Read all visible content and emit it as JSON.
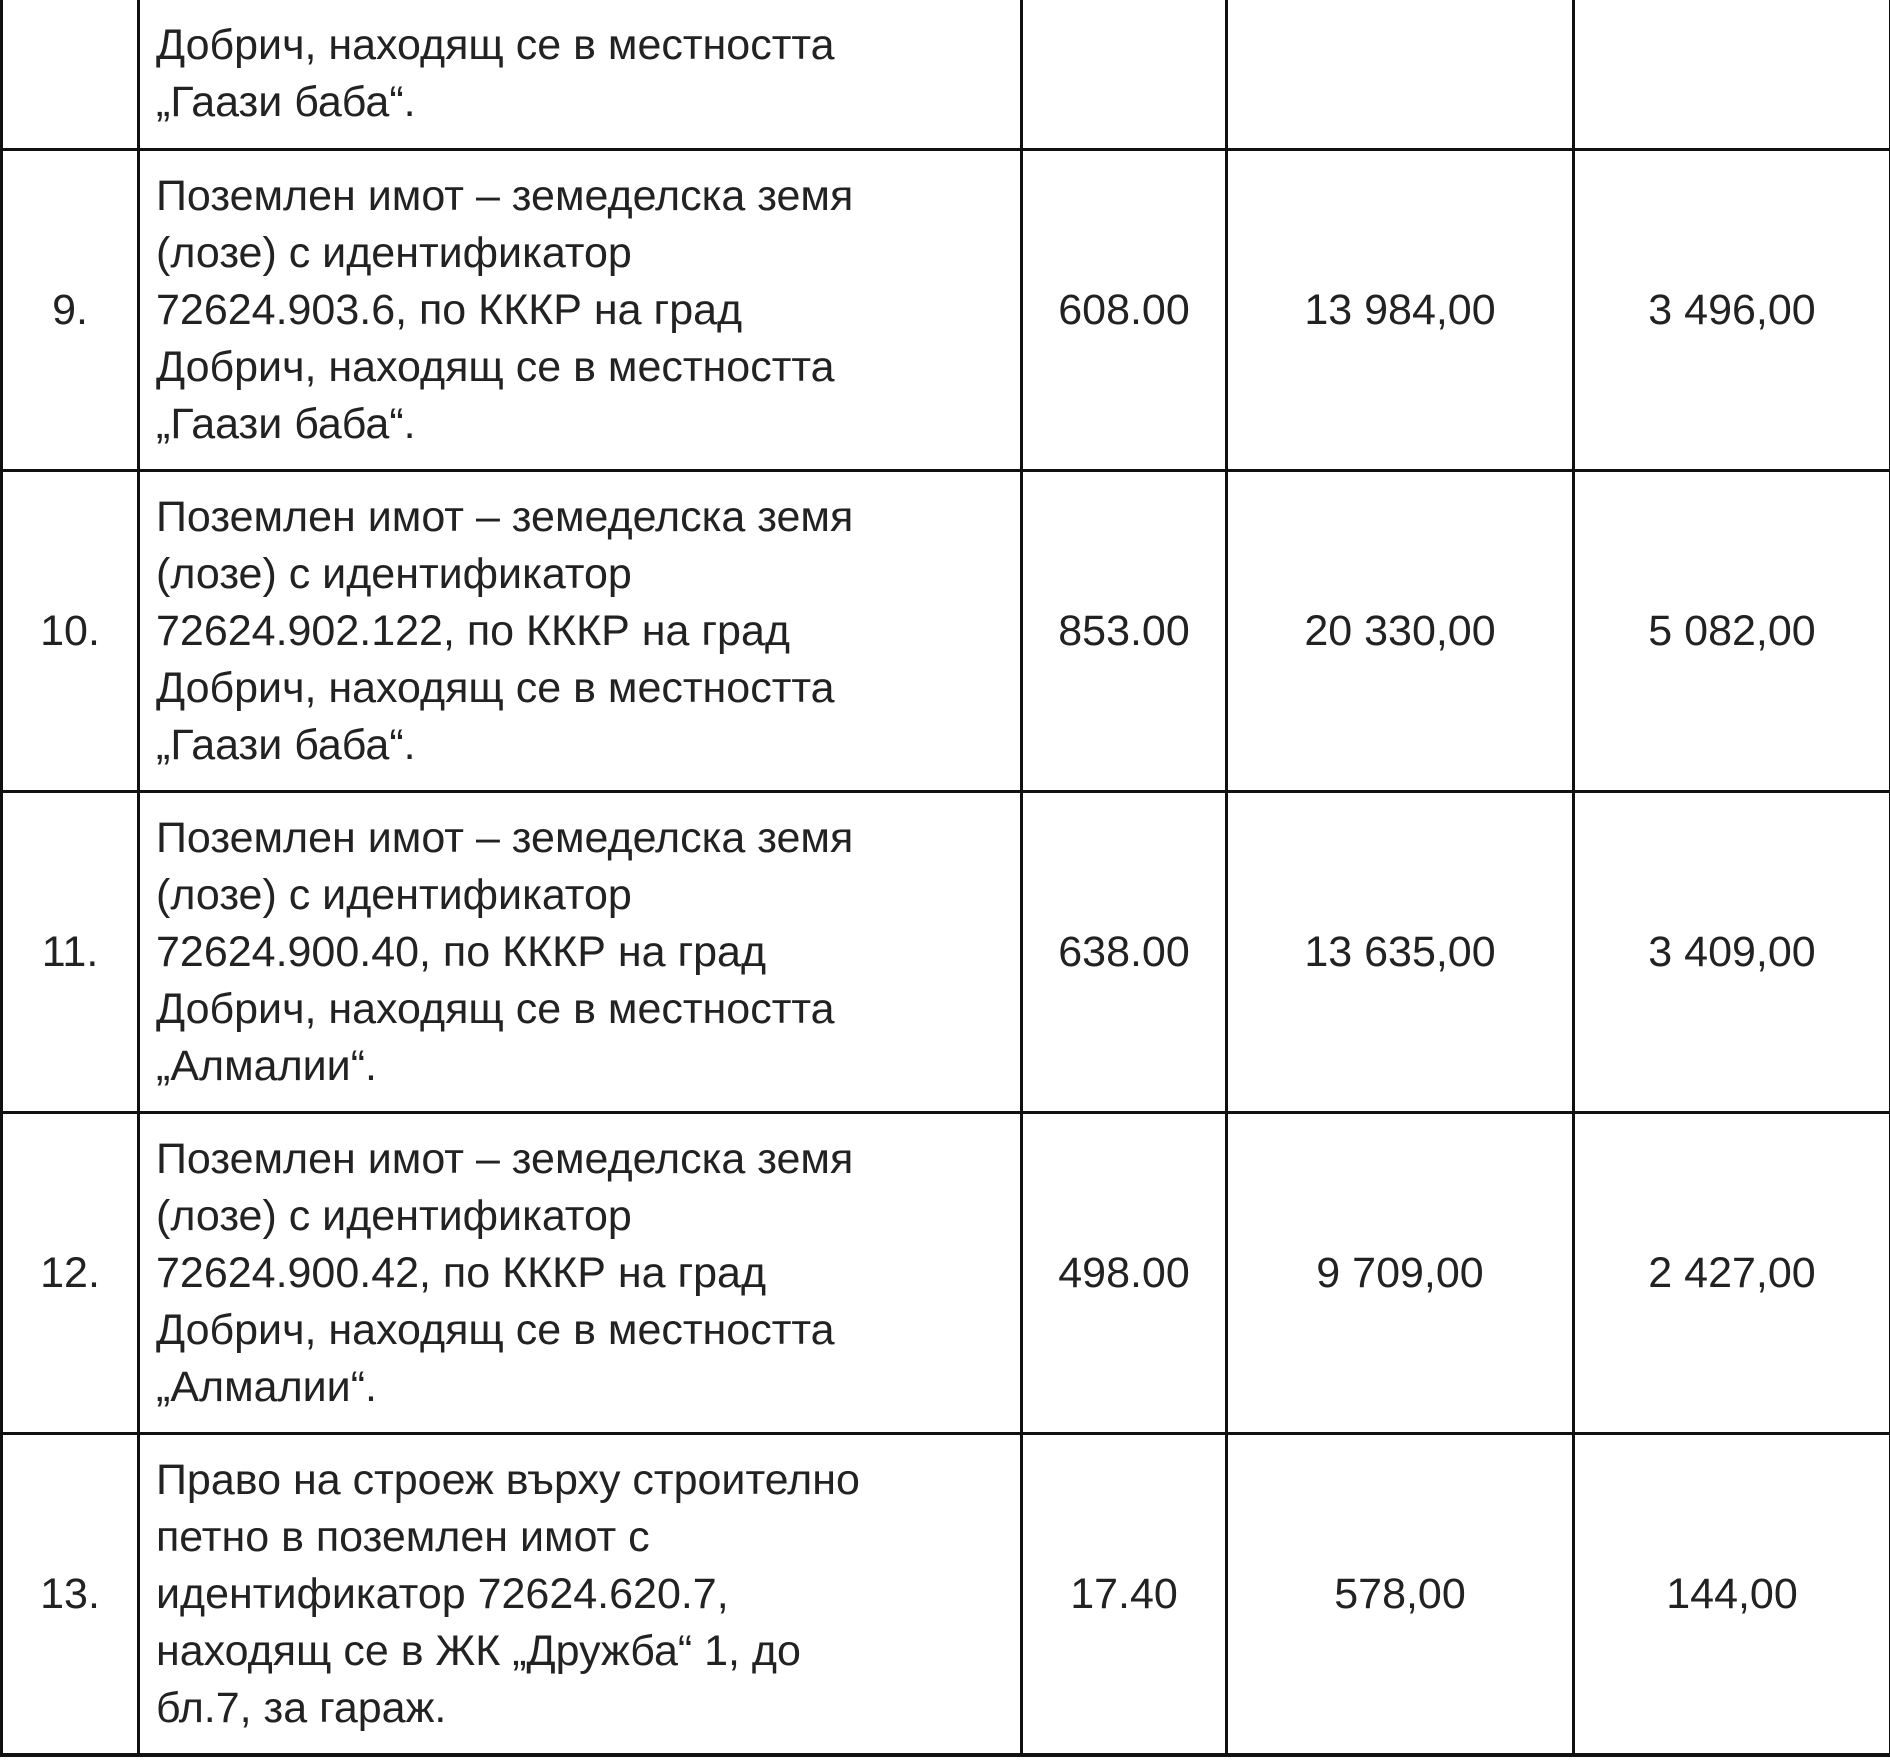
{
  "rows": [
    {
      "no": "",
      "desc": [
        "Добрич, находящ се в местността",
        "„Гаази баба“."
      ],
      "area": "",
      "value1": "",
      "value2": ""
    },
    {
      "no": "9.",
      "desc": [
        "Поземлен имот – земеделска земя",
        "(лозе) с идентификатор",
        "72624.903.6, по КККР на град",
        "Добрич, находящ се в местността",
        "„Гаази баба“."
      ],
      "area": "608.00",
      "value1": "13 984,00",
      "value2": "3 496,00"
    },
    {
      "no": "10.",
      "desc": [
        "Поземлен имот – земеделска земя",
        "(лозе) с идентификатор",
        "72624.902.122, по КККР на град",
        "Добрич, находящ се в местността",
        "„Гаази баба“."
      ],
      "area": "853.00",
      "value1": "20 330,00",
      "value2": "5 082,00"
    },
    {
      "no": "11.",
      "desc": [
        "Поземлен имот – земеделска земя",
        "(лозе) с идентификатор",
        "72624.900.40, по КККР на град",
        "Добрич, находящ се в местността",
        "„Алмалии“."
      ],
      "area": "638.00",
      "value1": "13 635,00",
      "value2": "3 409,00"
    },
    {
      "no": "12.",
      "desc": [
        "Поземлен имот – земеделска земя",
        "(лозе) с идентификатор",
        "72624.900.42, по КККР на град",
        "Добрич, находящ се в местността",
        "„Алмалии“."
      ],
      "area": "498.00",
      "value1": "9 709,00",
      "value2": "2 427,00"
    },
    {
      "no": "13.",
      "desc": [
        "Право на строеж върху строително",
        "петно в поземлен имот с",
        "идентификатор 72624.620.7,",
        "находящ се в ЖК „Дружба“ 1, до",
        "бл.7, за гараж."
      ],
      "area": "17.40",
      "value1": "578,00",
      "value2": "144,00"
    }
  ]
}
